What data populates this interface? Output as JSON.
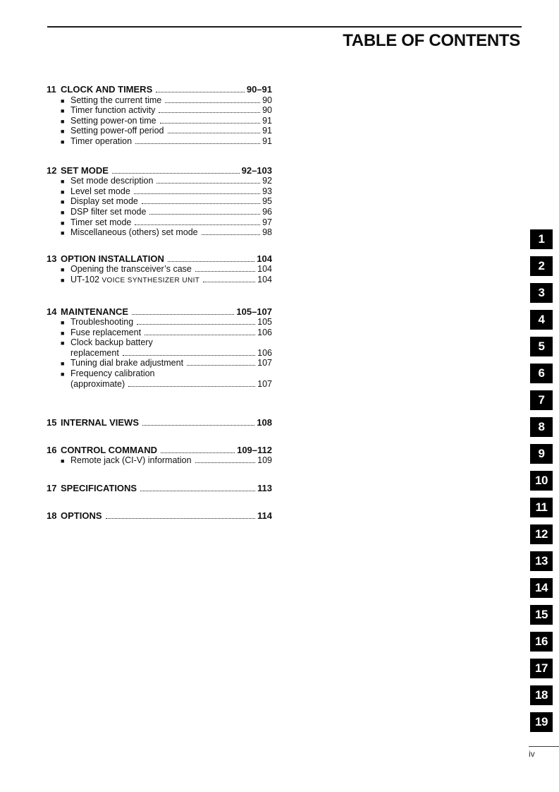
{
  "page_title": "TABLE OF CONTENTS",
  "colors": {
    "tab_bg": "#000000",
    "tab_text": "#ffffff",
    "text": "#111111"
  },
  "icons": {
    "item_bullet": "■"
  },
  "toc": {
    "sections": [
      {
        "num": "11",
        "title": "CLOCK AND TIMERS",
        "pages": "90–91",
        "items": [
          {
            "text": "Setting the current time",
            "page": "90"
          },
          {
            "text": "Timer function activity",
            "page": "90"
          },
          {
            "text": "Setting power-on time",
            "page": "91"
          },
          {
            "text": "Setting power-off period",
            "page": "91"
          },
          {
            "text": "Timer operation",
            "page": "91"
          }
        ]
      },
      {
        "num": "12",
        "title": "SET MODE",
        "pages": "92–103",
        "items": [
          {
            "text": "Set mode description",
            "page": "92"
          },
          {
            "text": "Level set mode",
            "page": "93"
          },
          {
            "text": "Display set mode",
            "page": "95"
          },
          {
            "text": "DSP filter set mode",
            "page": "96"
          },
          {
            "text": "Timer set mode",
            "page": "97"
          },
          {
            "text": "Miscellaneous (others) set mode",
            "page": "98"
          }
        ]
      },
      {
        "num": "13",
        "title": "OPTION INSTALLATION",
        "pages": "104",
        "items": [
          {
            "text": "Opening the transceiver’s case",
            "page": "104"
          },
          {
            "text": "UT-102 ",
            "smallcaps": "VOICE SYNTHESIZER UNIT",
            "page": "104"
          }
        ]
      },
      {
        "num": "14",
        "title": "MAINTENANCE",
        "pages": "105–107",
        "items": [
          {
            "text": "Troubleshooting",
            "page": "105"
          },
          {
            "text": "Fuse replacement",
            "page": "106"
          },
          {
            "text": "Clock backup battery",
            "cont": "replacement",
            "page": "106"
          },
          {
            "text": "Tuning dial brake adjustment",
            "page": "107"
          },
          {
            "text": "Frequency calibration",
            "cont": "(approximate)",
            "page": "107"
          }
        ]
      },
      {
        "num": "15",
        "title": "INTERNAL VIEWS",
        "pages": "108",
        "items": []
      },
      {
        "num": "16",
        "title": "CONTROL COMMAND",
        "pages": "109–112",
        "items": [
          {
            "text": "Remote jack (CI-V) information",
            "page": "109"
          }
        ]
      },
      {
        "num": "17",
        "title": "SPECIFICATIONS",
        "pages": "113",
        "items": []
      },
      {
        "num": "18",
        "title": "OPTIONS",
        "pages": "114",
        "items": []
      }
    ]
  },
  "tabs": {
    "numbers": [
      "1",
      "2",
      "3",
      "4",
      "5",
      "6",
      "7",
      "8",
      "9",
      "10",
      "11",
      "12",
      "13",
      "14",
      "15",
      "16",
      "17",
      "18",
      "19"
    ]
  },
  "footer": {
    "page_label": "iv"
  }
}
